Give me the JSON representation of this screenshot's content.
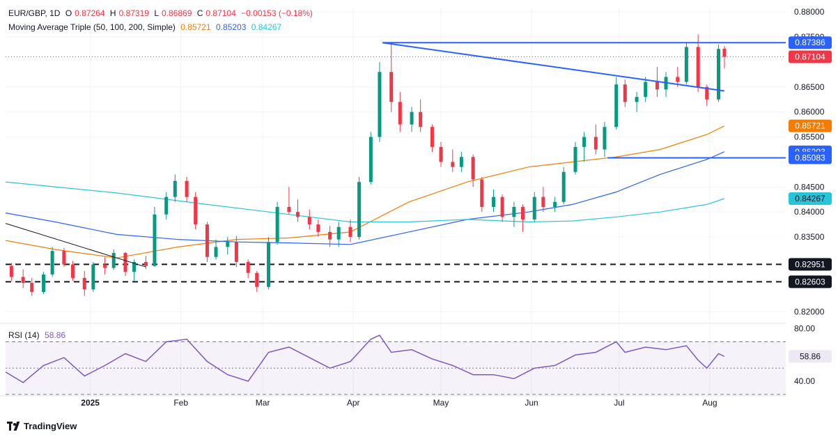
{
  "header": {
    "symbol": "EUR/GBP, 1D",
    "o_label": "O",
    "o_value": "0.87264",
    "h_label": "H",
    "h_value": "0.87319",
    "l_label": "L",
    "l_value": "0.86869",
    "c_label": "C",
    "c_value": "0.87104",
    "change": "−0.00153 (−0.18%)",
    "ma_title": "Moving Average Triple (50, 100, 200, Simple)",
    "ma50_value": "0.85721",
    "ma100_value": "0.85203",
    "ma200_value": "0.84267",
    "rsi_title": "RSI (14)",
    "rsi_value": "58.86"
  },
  "branding": {
    "name": "TradingView"
  },
  "colors": {
    "up": "#089981",
    "down": "#f23645",
    "ma50": "#f57c00",
    "ma100": "#2962ff",
    "ma200": "#26c6da",
    "trendline": "#2962ff",
    "rsi": "#7e57c2",
    "level": "#131722"
  },
  "chart_data": [
    {
      "type": "candlestick",
      "title": "EUR/GBP, 1D",
      "ylim": [
        0.818,
        0.881
      ],
      "y_ticks": [
        "0.88000",
        "0.87500",
        "0.86500",
        "0.86000",
        "0.85500",
        "0.84500",
        "0.84000",
        "0.83500",
        "0.82000"
      ],
      "x_ticks": [
        {
          "label": "2025",
          "date": "2025-01-01"
        },
        {
          "label": "Feb",
          "date": "2025-02-01"
        },
        {
          "label": "Mar",
          "date": "2025-03-01"
        },
        {
          "label": "Apr",
          "date": "2025-04-01"
        },
        {
          "label": "May",
          "date": "2025-05-01"
        },
        {
          "label": "Jun",
          "date": "2025-06-01"
        },
        {
          "label": "Jul",
          "date": "2025-07-01"
        },
        {
          "label": "Aug",
          "date": "2025-08-01"
        }
      ],
      "x_start_date": "2024-12-03",
      "x_end_date": "2025-08-27",
      "price_labels": [
        {
          "text": "0.87386",
          "value": 0.87386,
          "kind": "trendline"
        },
        {
          "text": "0.87104",
          "value": 0.87104,
          "kind": "last"
        },
        {
          "text": "0.85721",
          "value": 0.85721,
          "kind": "ma50"
        },
        {
          "text": "0.85203",
          "value": 0.85203,
          "kind": "ma100"
        },
        {
          "text": "0.85083",
          "value": 0.85083,
          "kind": "trendline"
        },
        {
          "text": "0.84267",
          "value": 0.84267,
          "kind": "ma200"
        },
        {
          "text": "0.82951",
          "value": 0.82951,
          "kind": "level"
        },
        {
          "text": "0.82603",
          "value": 0.82603,
          "kind": "level"
        }
      ],
      "last_price": 0.87104,
      "horizontal_levels": [
        {
          "value": 0.82951,
          "style": "dashed",
          "from": "2024-12-03",
          "to": "2025-08-27"
        },
        {
          "value": 0.82603,
          "style": "dashed",
          "from": "2024-12-03",
          "to": "2025-08-27"
        }
      ],
      "trendlines": [
        {
          "from": [
            "2025-04-11",
            0.87386
          ],
          "to": [
            "2025-08-27",
            0.87386
          ],
          "color": "#2962ff"
        },
        {
          "from": [
            "2025-04-11",
            0.87386
          ],
          "to": [
            "2025-08-06",
            0.8642
          ],
          "color": "#2962ff"
        },
        {
          "from": [
            "2025-06-27",
            0.85083
          ],
          "to": [
            "2025-08-27",
            0.85083
          ],
          "color": "#2962ff"
        },
        {
          "from": [
            "2024-12-03",
            0.8377
          ],
          "to": [
            "2025-01-20",
            0.829
          ],
          "color": "#131722"
        }
      ],
      "ohlc": [
        {
          "x": "2024-12-05",
          "o": 0.8292,
          "h": 0.8298,
          "l": 0.8262,
          "c": 0.827
        },
        {
          "x": "2024-12-09",
          "o": 0.827,
          "h": 0.8285,
          "l": 0.8248,
          "c": 0.8258
        },
        {
          "x": "2024-12-12",
          "o": 0.8258,
          "h": 0.8268,
          "l": 0.8232,
          "c": 0.824
        },
        {
          "x": "2024-12-16",
          "o": 0.824,
          "h": 0.828,
          "l": 0.8236,
          "c": 0.8275
        },
        {
          "x": "2024-12-19",
          "o": 0.8275,
          "h": 0.833,
          "l": 0.827,
          "c": 0.8322
        },
        {
          "x": "2024-12-23",
          "o": 0.8322,
          "h": 0.8328,
          "l": 0.829,
          "c": 0.8295
        },
        {
          "x": "2024-12-26",
          "o": 0.8295,
          "h": 0.8302,
          "l": 0.8262,
          "c": 0.8268
        },
        {
          "x": "2024-12-30",
          "o": 0.8268,
          "h": 0.8282,
          "l": 0.8232,
          "c": 0.8245
        },
        {
          "x": "2025-01-02",
          "o": 0.8245,
          "h": 0.83,
          "l": 0.824,
          "c": 0.8295
        },
        {
          "x": "2025-01-06",
          "o": 0.8295,
          "h": 0.831,
          "l": 0.8275,
          "c": 0.8288
        },
        {
          "x": "2025-01-09",
          "o": 0.8288,
          "h": 0.8325,
          "l": 0.8284,
          "c": 0.8318
        },
        {
          "x": "2025-01-13",
          "o": 0.8318,
          "h": 0.832,
          "l": 0.8272,
          "c": 0.828
        },
        {
          "x": "2025-01-16",
          "o": 0.828,
          "h": 0.8305,
          "l": 0.8262,
          "c": 0.83
        },
        {
          "x": "2025-01-20",
          "o": 0.83,
          "h": 0.8312,
          "l": 0.8286,
          "c": 0.8292
        },
        {
          "x": "2025-01-23",
          "o": 0.8292,
          "h": 0.841,
          "l": 0.829,
          "c": 0.8395
        },
        {
          "x": "2025-01-27",
          "o": 0.8395,
          "h": 0.844,
          "l": 0.8385,
          "c": 0.843
        },
        {
          "x": "2025-01-30",
          "o": 0.843,
          "h": 0.8475,
          "l": 0.842,
          "c": 0.8462
        },
        {
          "x": "2025-02-03",
          "o": 0.8462,
          "h": 0.847,
          "l": 0.842,
          "c": 0.843
        },
        {
          "x": "2025-02-06",
          "o": 0.843,
          "h": 0.844,
          "l": 0.8365,
          "c": 0.8375
        },
        {
          "x": "2025-02-10",
          "o": 0.8375,
          "h": 0.838,
          "l": 0.83,
          "c": 0.831
        },
        {
          "x": "2025-02-13",
          "o": 0.831,
          "h": 0.8345,
          "l": 0.8305,
          "c": 0.833
        },
        {
          "x": "2025-02-17",
          "o": 0.833,
          "h": 0.835,
          "l": 0.8315,
          "c": 0.834
        },
        {
          "x": "2025-02-20",
          "o": 0.834,
          "h": 0.8352,
          "l": 0.829,
          "c": 0.83
        },
        {
          "x": "2025-02-24",
          "o": 0.83,
          "h": 0.8305,
          "l": 0.8268,
          "c": 0.8278
        },
        {
          "x": "2025-02-27",
          "o": 0.8278,
          "h": 0.8282,
          "l": 0.824,
          "c": 0.825
        },
        {
          "x": "2025-03-03",
          "o": 0.825,
          "h": 0.835,
          "l": 0.8245,
          "c": 0.834
        },
        {
          "x": "2025-03-06",
          "o": 0.834,
          "h": 0.842,
          "l": 0.8335,
          "c": 0.841
        },
        {
          "x": "2025-03-10",
          "o": 0.841,
          "h": 0.845,
          "l": 0.8395,
          "c": 0.84
        },
        {
          "x": "2025-03-13",
          "o": 0.84,
          "h": 0.8425,
          "l": 0.838,
          "c": 0.839
        },
        {
          "x": "2025-03-17",
          "o": 0.839,
          "h": 0.8405,
          "l": 0.8365,
          "c": 0.8375
        },
        {
          "x": "2025-03-20",
          "o": 0.8375,
          "h": 0.8385,
          "l": 0.835,
          "c": 0.836
        },
        {
          "x": "2025-03-24",
          "o": 0.836,
          "h": 0.8372,
          "l": 0.833,
          "c": 0.8345
        },
        {
          "x": "2025-03-27",
          "o": 0.8345,
          "h": 0.838,
          "l": 0.833,
          "c": 0.837
        },
        {
          "x": "2025-03-31",
          "o": 0.837,
          "h": 0.8385,
          "l": 0.834,
          "c": 0.835
        },
        {
          "x": "2025-04-03",
          "o": 0.835,
          "h": 0.847,
          "l": 0.8345,
          "c": 0.846
        },
        {
          "x": "2025-04-07",
          "o": 0.846,
          "h": 0.856,
          "l": 0.8455,
          "c": 0.855
        },
        {
          "x": "2025-04-10",
          "o": 0.855,
          "h": 0.87,
          "l": 0.854,
          "c": 0.868
        },
        {
          "x": "2025-04-14",
          "o": 0.868,
          "h": 0.874,
          "l": 0.86,
          "c": 0.862
        },
        {
          "x": "2025-04-17",
          "o": 0.862,
          "h": 0.864,
          "l": 0.856,
          "c": 0.8575
        },
        {
          "x": "2025-04-21",
          "o": 0.8575,
          "h": 0.861,
          "l": 0.856,
          "c": 0.86
        },
        {
          "x": "2025-04-24",
          "o": 0.86,
          "h": 0.8625,
          "l": 0.856,
          "c": 0.857
        },
        {
          "x": "2025-04-28",
          "o": 0.857,
          "h": 0.8575,
          "l": 0.852,
          "c": 0.853
        },
        {
          "x": "2025-05-01",
          "o": 0.853,
          "h": 0.854,
          "l": 0.849,
          "c": 0.85
        },
        {
          "x": "2025-05-05",
          "o": 0.85,
          "h": 0.8525,
          "l": 0.848,
          "c": 0.849
        },
        {
          "x": "2025-05-08",
          "o": 0.849,
          "h": 0.852,
          "l": 0.848,
          "c": 0.851
        },
        {
          "x": "2025-05-12",
          "o": 0.851,
          "h": 0.8515,
          "l": 0.845,
          "c": 0.8465
        },
        {
          "x": "2025-05-15",
          "o": 0.8465,
          "h": 0.847,
          "l": 0.84,
          "c": 0.841
        },
        {
          "x": "2025-05-19",
          "o": 0.841,
          "h": 0.8445,
          "l": 0.84,
          "c": 0.843
        },
        {
          "x": "2025-05-22",
          "o": 0.843,
          "h": 0.8435,
          "l": 0.838,
          "c": 0.839
        },
        {
          "x": "2025-05-26",
          "o": 0.839,
          "h": 0.842,
          "l": 0.837,
          "c": 0.841
        },
        {
          "x": "2025-05-29",
          "o": 0.841,
          "h": 0.8415,
          "l": 0.836,
          "c": 0.8385
        },
        {
          "x": "2025-06-02",
          "o": 0.8385,
          "h": 0.844,
          "l": 0.838,
          "c": 0.843
        },
        {
          "x": "2025-06-05",
          "o": 0.843,
          "h": 0.845,
          "l": 0.84,
          "c": 0.841
        },
        {
          "x": "2025-06-09",
          "o": 0.841,
          "h": 0.843,
          "l": 0.84,
          "c": 0.842
        },
        {
          "x": "2025-06-12",
          "o": 0.842,
          "h": 0.849,
          "l": 0.8415,
          "c": 0.848
        },
        {
          "x": "2025-06-16",
          "o": 0.848,
          "h": 0.854,
          "l": 0.8475,
          "c": 0.853
        },
        {
          "x": "2025-06-19",
          "o": 0.853,
          "h": 0.856,
          "l": 0.85,
          "c": 0.855
        },
        {
          "x": "2025-06-23",
          "o": 0.855,
          "h": 0.8575,
          "l": 0.8515,
          "c": 0.8525
        },
        {
          "x": "2025-06-26",
          "o": 0.8525,
          "h": 0.858,
          "l": 0.851,
          "c": 0.857
        },
        {
          "x": "2025-06-30",
          "o": 0.857,
          "h": 0.867,
          "l": 0.8565,
          "c": 0.8655
        },
        {
          "x": "2025-07-03",
          "o": 0.8655,
          "h": 0.8665,
          "l": 0.861,
          "c": 0.862
        },
        {
          "x": "2025-07-07",
          "o": 0.862,
          "h": 0.864,
          "l": 0.86,
          "c": 0.863
        },
        {
          "x": "2025-07-10",
          "o": 0.863,
          "h": 0.867,
          "l": 0.862,
          "c": 0.866
        },
        {
          "x": "2025-07-14",
          "o": 0.866,
          "h": 0.869,
          "l": 0.863,
          "c": 0.8645
        },
        {
          "x": "2025-07-17",
          "o": 0.8645,
          "h": 0.868,
          "l": 0.863,
          "c": 0.867
        },
        {
          "x": "2025-07-21",
          "o": 0.867,
          "h": 0.869,
          "l": 0.865,
          "c": 0.866
        },
        {
          "x": "2025-07-24",
          "o": 0.866,
          "h": 0.874,
          "l": 0.8655,
          "c": 0.873
        },
        {
          "x": "2025-07-28",
          "o": 0.873,
          "h": 0.8755,
          "l": 0.864,
          "c": 0.865
        },
        {
          "x": "2025-07-31",
          "o": 0.865,
          "h": 0.8655,
          "l": 0.8612,
          "c": 0.8625
        },
        {
          "x": "2025-08-04",
          "o": 0.8625,
          "h": 0.8735,
          "l": 0.862,
          "c": 0.8726
        },
        {
          "x": "2025-08-06",
          "o": 0.87264,
          "h": 0.87319,
          "l": 0.86869,
          "c": 0.87104
        }
      ],
      "moving_averages": [
        {
          "name": "MA 50",
          "color": "#f57c00",
          "points": [
            [
              "2024-12-03",
              0.8343
            ],
            [
              "2024-12-20",
              0.8325
            ],
            [
              "2025-01-10",
              0.8308
            ],
            [
              "2025-01-31",
              0.833
            ],
            [
              "2025-02-20",
              0.8345
            ],
            [
              "2025-03-10",
              0.8348
            ],
            [
              "2025-03-31",
              0.836
            ],
            [
              "2025-04-20",
              0.842
            ],
            [
              "2025-05-10",
              0.846
            ],
            [
              "2025-05-31",
              0.849
            ],
            [
              "2025-06-15",
              0.85
            ],
            [
              "2025-06-30",
              0.851
            ],
            [
              "2025-07-15",
              0.8525
            ],
            [
              "2025-07-31",
              0.8555
            ],
            [
              "2025-08-06",
              0.85721
            ]
          ]
        },
        {
          "name": "MA 100",
          "color": "#2962ff",
          "points": [
            [
              "2024-12-03",
              0.8398
            ],
            [
              "2024-12-20",
              0.838
            ],
            [
              "2025-01-10",
              0.8355
            ],
            [
              "2025-01-31",
              0.8345
            ],
            [
              "2025-02-20",
              0.834
            ],
            [
              "2025-03-10",
              0.8338
            ],
            [
              "2025-03-31",
              0.8335
            ],
            [
              "2025-04-20",
              0.836
            ],
            [
              "2025-05-10",
              0.8385
            ],
            [
              "2025-05-31",
              0.84
            ],
            [
              "2025-06-15",
              0.8415
            ],
            [
              "2025-06-30",
              0.844
            ],
            [
              "2025-07-15",
              0.8475
            ],
            [
              "2025-07-31",
              0.8505
            ],
            [
              "2025-08-06",
              0.85203
            ]
          ]
        },
        {
          "name": "MA 200",
          "color": "#26c6da",
          "points": [
            [
              "2024-12-03",
              0.846
            ],
            [
              "2025-01-10",
              0.8438
            ],
            [
              "2025-02-10",
              0.8415
            ],
            [
              "2025-03-10",
              0.8395
            ],
            [
              "2025-03-31",
              0.838
            ],
            [
              "2025-04-20",
              0.838
            ],
            [
              "2025-05-10",
              0.8385
            ],
            [
              "2025-05-31",
              0.838
            ],
            [
              "2025-06-15",
              0.8382
            ],
            [
              "2025-06-30",
              0.839
            ],
            [
              "2025-07-15",
              0.84
            ],
            [
              "2025-07-31",
              0.8415
            ],
            [
              "2025-08-06",
              0.84267
            ]
          ]
        }
      ]
    },
    {
      "type": "line",
      "title": "RSI (14)",
      "ylim": [
        30,
        83
      ],
      "y_ticks": [
        "80.00",
        "40.00"
      ],
      "levels": [
        70,
        50,
        30
      ],
      "last_value": 58.86,
      "last_label": "58.86",
      "x": [
        "2024-12-03",
        "2024-12-09",
        "2024-12-16",
        "2024-12-23",
        "2024-12-30",
        "2025-01-06",
        "2025-01-13",
        "2025-01-20",
        "2025-01-27",
        "2025-02-03",
        "2025-02-10",
        "2025-02-17",
        "2025-02-24",
        "2025-03-03",
        "2025-03-10",
        "2025-03-17",
        "2025-03-24",
        "2025-03-31",
        "2025-04-07",
        "2025-04-10",
        "2025-04-14",
        "2025-04-21",
        "2025-04-28",
        "2025-05-05",
        "2025-05-12",
        "2025-05-19",
        "2025-05-26",
        "2025-06-02",
        "2025-06-09",
        "2025-06-16",
        "2025-06-23",
        "2025-06-30",
        "2025-07-03",
        "2025-07-10",
        "2025-07-17",
        "2025-07-24",
        "2025-07-28",
        "2025-07-31",
        "2025-08-04",
        "2025-08-06"
      ],
      "values": [
        47,
        39,
        52,
        58,
        44,
        52,
        61,
        55,
        70,
        72,
        55,
        45,
        40,
        62,
        66,
        58,
        50,
        55,
        72,
        75,
        62,
        64,
        57,
        52,
        45,
        45,
        42,
        50,
        52,
        60,
        62,
        70,
        62,
        66,
        64,
        67,
        56,
        50,
        61,
        58.86
      ]
    }
  ]
}
